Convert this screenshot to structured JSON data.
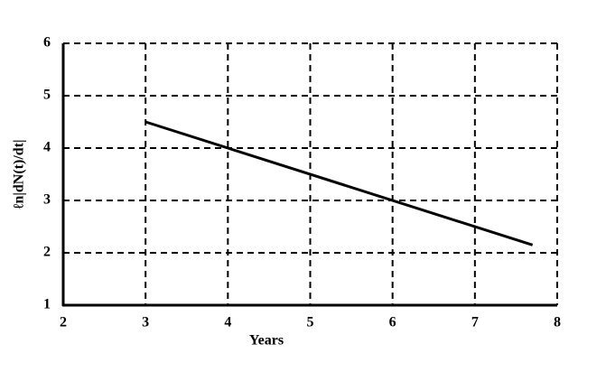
{
  "chart_data": {
    "type": "line",
    "x_label": "Years",
    "y_label": "ℓn|dN(t)/dt|",
    "x": [
      3,
      7.7
    ],
    "values": [
      4.5,
      2.15
    ],
    "color": "#000000",
    "xlim": [
      2,
      8
    ],
    "xticks": [
      2,
      3,
      4,
      5,
      6,
      7,
      8
    ],
    "ylim": [
      1,
      6
    ],
    "yticks": [
      1,
      2,
      3,
      4,
      5,
      6
    ],
    "grid": true
  }
}
